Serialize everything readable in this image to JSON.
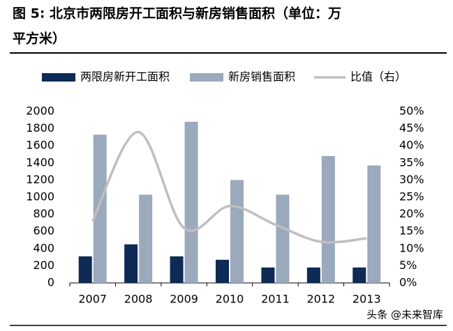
{
  "chart_data": {
    "type": "bar",
    "title": "图 5: 北京市两限房开工面积与新房销售面积（单位：万平方米）",
    "watermark": "头条 @未来智库",
    "categories": [
      "2007",
      "2008",
      "2009",
      "2010",
      "2011",
      "2012",
      "2013"
    ],
    "series": [
      {
        "name": "两限房新开工面积",
        "color": "#0e2a55",
        "values": [
          310,
          450,
          310,
          270,
          180,
          180,
          180
        ]
      },
      {
        "name": "新房销售面积",
        "color": "#9aa9bb",
        "values": [
          1730,
          1030,
          1880,
          1200,
          1030,
          1480,
          1370
        ]
      },
      {
        "name": "比值（右）",
        "color": "#bfbfbf",
        "type": "line",
        "axis": "y2",
        "values": [
          18,
          44,
          16,
          22.4,
          17,
          12,
          13
        ]
      }
    ],
    "ylim": [
      0,
      2000
    ],
    "yticks": [
      0,
      200,
      400,
      600,
      800,
      1000,
      1200,
      1400,
      1600,
      1800,
      2000
    ],
    "y2lim": [
      0,
      50
    ],
    "y2ticks": [
      {
        "value": 0,
        "label": "0%"
      },
      {
        "value": 5,
        "label": "5%"
      },
      {
        "value": 10,
        "label": "10%"
      },
      {
        "value": 15,
        "label": "15%"
      },
      {
        "value": 20,
        "label": "20%"
      },
      {
        "value": 25,
        "label": "25%"
      },
      {
        "value": 30,
        "label": "30%"
      },
      {
        "value": 35,
        "label": "35%"
      },
      {
        "value": 40,
        "label": "40%"
      },
      {
        "value": 45,
        "label": "45%"
      },
      {
        "value": 50,
        "label": "50%"
      }
    ],
    "legend": "top",
    "grid": false
  }
}
